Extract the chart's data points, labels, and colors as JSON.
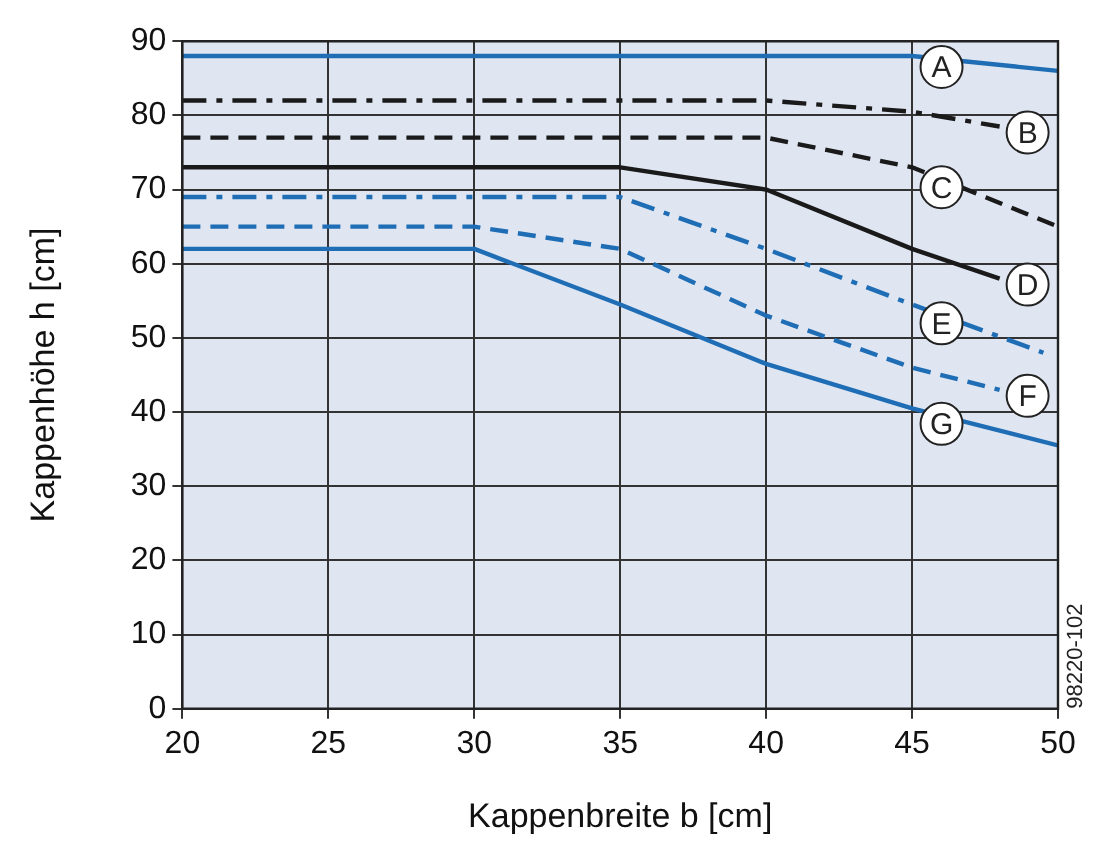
{
  "chart_data": {
    "type": "line",
    "xlabel": "Kappenbreite b [cm]",
    "ylabel": "Kappenhöhe h [cm]",
    "xlim": [
      20,
      50
    ],
    "xticks": [
      20,
      25,
      30,
      35,
      40,
      45,
      50
    ],
    "ylim": [
      0,
      90
    ],
    "yticks": [
      0,
      10,
      20,
      30,
      40,
      50,
      60,
      70,
      80,
      90
    ],
    "grid": true,
    "legend": false,
    "marker": "none",
    "series": [
      {
        "name": "A",
        "color": "#1f6db5",
        "line_style": "solid",
        "x": [
          20,
          45,
          50
        ],
        "values": [
          88,
          88,
          86
        ]
      },
      {
        "name": "B",
        "color": "#1a1a1a",
        "line_style": "dashdot",
        "x": [
          20,
          40,
          45,
          48
        ],
        "values": [
          82,
          82,
          80.5,
          78.5
        ]
      },
      {
        "name": "C",
        "color": "#1a1a1a",
        "line_style": "dashed",
        "x": [
          20,
          40,
          45,
          50
        ],
        "values": [
          77,
          77,
          73,
          65
        ]
      },
      {
        "name": "D",
        "color": "#1a1a1a",
        "line_style": "solid",
        "x": [
          20,
          35,
          40,
          45,
          48
        ],
        "values": [
          73,
          73,
          70,
          62,
          58
        ]
      },
      {
        "name": "E",
        "color": "#1f6db5",
        "line_style": "dashdot",
        "x": [
          20,
          35,
          40,
          45,
          49.5
        ],
        "values": [
          69,
          69,
          62,
          54.5,
          48
        ]
      },
      {
        "name": "F",
        "color": "#1f6db5",
        "line_style": "dashed",
        "x": [
          20,
          30,
          35,
          40,
          45,
          48
        ],
        "values": [
          65,
          65,
          62,
          53,
          46,
          43
        ]
      },
      {
        "name": "G",
        "color": "#1f6db5",
        "line_style": "solid",
        "x": [
          20,
          30,
          35,
          40,
          45,
          50
        ],
        "values": [
          62,
          62,
          54.5,
          46.5,
          40.5,
          35.5
        ]
      }
    ],
    "annotations": [
      "98220-102"
    ]
  }
}
